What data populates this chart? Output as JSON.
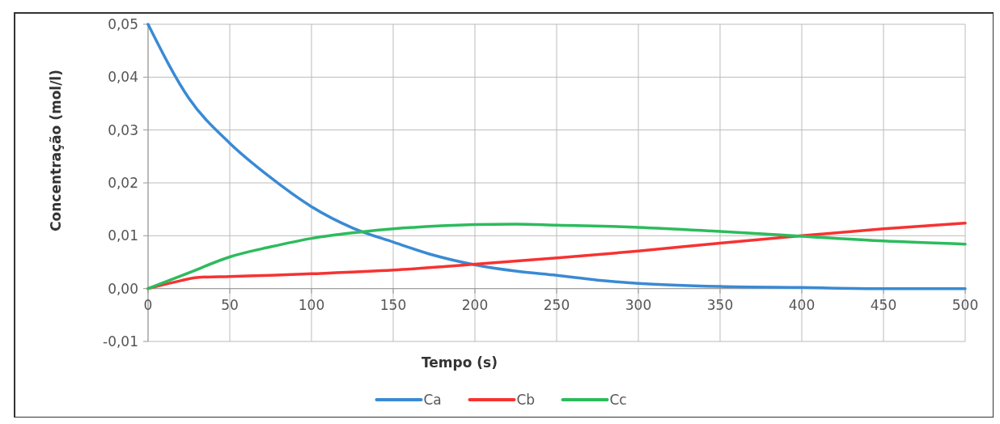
{
  "chart_data": {
    "type": "line",
    "xlabel": "Tempo (s)",
    "ylabel": "Concentração (mol/l)",
    "xlim": [
      0,
      500
    ],
    "xticks": [
      0,
      50,
      100,
      150,
      200,
      250,
      300,
      350,
      400,
      450,
      500
    ],
    "ylim": [
      -0.01,
      0.05
    ],
    "yticks": [
      {
        "value": -0.01,
        "label": "-0,01"
      },
      {
        "value": 0,
        "label": "0,00"
      },
      {
        "value": 0.01,
        "label": "0,01"
      },
      {
        "value": 0.02,
        "label": "0,02"
      },
      {
        "value": 0.03,
        "label": "0,03"
      },
      {
        "value": 0.04,
        "label": "0,04"
      },
      {
        "value": 0.05,
        "label": "0,05"
      }
    ],
    "grid": true,
    "legend": "bottom",
    "marker": "none",
    "line_style": "solid",
    "series": [
      {
        "name": "Ca",
        "color": "#3a8ad4",
        "x": [
          0,
          25,
          50,
          75,
          100,
          125,
          150,
          175,
          200,
          225,
          250,
          275,
          300,
          350,
          400,
          450,
          500
        ],
        "values": [
          0.05,
          0.036,
          0.0275,
          0.021,
          0.0155,
          0.0115,
          0.0088,
          0.0063,
          0.0045,
          0.0033,
          0.0025,
          0.0016,
          0.001,
          0.0004,
          0.0002,
          0,
          0
        ]
      },
      {
        "name": "Cb",
        "color": "#f73232",
        "x": [
          0,
          20,
          30,
          50,
          75,
          100,
          150,
          200,
          250,
          300,
          350,
          400,
          450,
          500
        ],
        "values": [
          0,
          0.0015,
          0.0021,
          0.0023,
          0.0025,
          0.0028,
          0.0035,
          0.0046,
          0.0058,
          0.0071,
          0.0086,
          0.01,
          0.0113,
          0.0124
        ]
      },
      {
        "name": "Cc",
        "color": "#2dbb5d",
        "x": [
          0,
          25,
          50,
          75,
          100,
          130,
          150,
          200,
          225,
          250,
          300,
          350,
          400,
          450,
          500
        ],
        "values": [
          0,
          0.003,
          0.006,
          0.0079,
          0.0095,
          0.0107,
          0.0113,
          0.0121,
          0.0122,
          0.012,
          0.0116,
          0.0108,
          0.0099,
          0.009,
          0.0084
        ]
      }
    ]
  }
}
